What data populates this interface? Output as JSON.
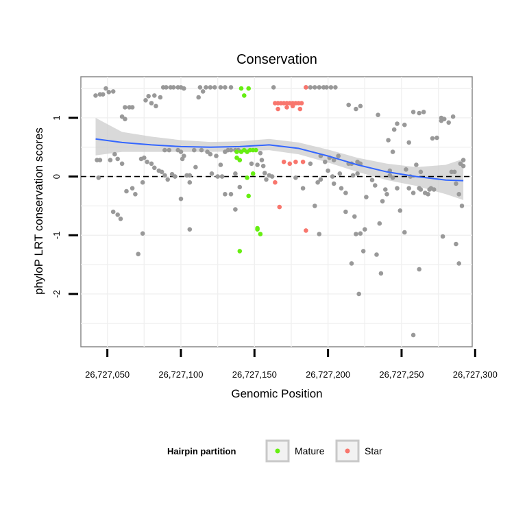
{
  "chart_data": {
    "type": "scatter",
    "title": "Conservation",
    "xlabel": "Genomic Position",
    "ylabel": "phyloP LRT conservation scores",
    "xlim": [
      26727032,
      26727298
    ],
    "ylim": [
      -2.9,
      1.7
    ],
    "x_ticks": [
      {
        "value": 26727050,
        "label": "26,727,050"
      },
      {
        "value": 26727100,
        "label": "26,727,100"
      },
      {
        "value": 26727150,
        "label": "26,727,150"
      },
      {
        "value": 26727200,
        "label": "26,727,200"
      },
      {
        "value": 26727250,
        "label": "26,727,250"
      },
      {
        "value": 26727300,
        "label": "26,727,300"
      }
    ],
    "y_ticks": [
      {
        "value": 1,
        "label": "1"
      },
      {
        "value": 0,
        "label": "0"
      },
      {
        "value": -1,
        "label": "-1"
      },
      {
        "value": -2,
        "label": "-2"
      }
    ],
    "grid": true,
    "reference_line": {
      "y": 0,
      "style": "dashed"
    },
    "legend": {
      "title": "Hairpin partition",
      "placement": "bottom",
      "entries": [
        {
          "name": "Mature",
          "color": "#66ee11"
        },
        {
          "name": "Star",
          "color": "#f8766d"
        }
      ]
    },
    "smooth": {
      "color": "#3366ff",
      "band_color": "#cccccc",
      "x": [
        26727042,
        26727060,
        26727080,
        26727100,
        26727120,
        26727140,
        26727160,
        26727180,
        26727200,
        26727220,
        26727240,
        26727260,
        26727280,
        26727292
      ],
      "y": [
        0.64,
        0.58,
        0.54,
        0.51,
        0.5,
        0.51,
        0.54,
        0.48,
        0.35,
        0.2,
        0.08,
        0.0,
        -0.06,
        -0.07
      ],
      "lower": [
        0.36,
        0.42,
        0.42,
        0.42,
        0.42,
        0.43,
        0.45,
        0.38,
        0.24,
        0.08,
        -0.06,
        -0.16,
        -0.3,
        -0.4
      ],
      "upper": [
        1.0,
        0.76,
        0.68,
        0.62,
        0.59,
        0.6,
        0.64,
        0.58,
        0.46,
        0.32,
        0.22,
        0.16,
        0.2,
        0.3
      ]
    },
    "series": [
      {
        "name": "",
        "color": "#999999",
        "points": [
          [
            26727042,
            1.38
          ],
          [
            26727045,
            1.4
          ],
          [
            26727047,
            1.4
          ],
          [
            26727049,
            1.5
          ],
          [
            26727051,
            1.44
          ],
          [
            26727054,
            1.45
          ],
          [
            26727043,
            0.28
          ],
          [
            26727045,
            0.28
          ],
          [
            26727044,
            -0.02
          ],
          [
            26727052,
            0.28
          ],
          [
            26727055,
            0.38
          ],
          [
            26727057,
            0.3
          ],
          [
            26727060,
            0.22
          ],
          [
            26727062,
            1.18
          ],
          [
            26727065,
            1.18
          ],
          [
            26727067,
            1.18
          ],
          [
            26727060,
            1.02
          ],
          [
            26727062,
            0.98
          ],
          [
            26727054,
            -0.6
          ],
          [
            26727057,
            -0.65
          ],
          [
            26727059,
            -0.72
          ],
          [
            26727063,
            -0.25
          ],
          [
            26727067,
            -0.2
          ],
          [
            26727069,
            -0.3
          ],
          [
            26727071,
            -1.32
          ],
          [
            26727074,
            -0.97
          ],
          [
            26727073,
            0.3
          ],
          [
            26727075,
            0.32
          ],
          [
            26727074,
            -0.1
          ],
          [
            26727077,
            0.25
          ],
          [
            26727076,
            1.3
          ],
          [
            26727078,
            1.37
          ],
          [
            26727082,
            1.38
          ],
          [
            26727080,
            1.25
          ],
          [
            26727083,
            1.2
          ],
          [
            26727086,
            1.35
          ],
          [
            26727088,
            1.52
          ],
          [
            26727090,
            1.52
          ],
          [
            26727093,
            1.52
          ],
          [
            26727095,
            1.52
          ],
          [
            26727098,
            1.52
          ],
          [
            26727100,
            1.52
          ],
          [
            26727102,
            1.5
          ],
          [
            26727080,
            0.22
          ],
          [
            26727082,
            0.15
          ],
          [
            26727085,
            0.1
          ],
          [
            26727087,
            0.08
          ],
          [
            26727089,
            0.02
          ],
          [
            26727091,
            -0.05
          ],
          [
            26727094,
            0.04
          ],
          [
            26727096,
            0.0
          ],
          [
            26727089,
            0.45
          ],
          [
            26727092,
            0.45
          ],
          [
            26727098,
            0.45
          ],
          [
            26727100,
            0.42
          ],
          [
            26727101,
            0.3
          ],
          [
            26727102,
            0.35
          ],
          [
            26727104,
            0.02
          ],
          [
            26727106,
            0.02
          ],
          [
            26727106,
            -0.1
          ],
          [
            26727110,
            0.16
          ],
          [
            26727100,
            -0.38
          ],
          [
            26727106,
            -0.9
          ],
          [
            26727112,
            1.35
          ],
          [
            26727115,
            1.45
          ],
          [
            26727113,
            1.52
          ],
          [
            26727117,
            1.52
          ],
          [
            26727120,
            1.52
          ],
          [
            26727123,
            1.52
          ],
          [
            26727127,
            1.52
          ],
          [
            26727130,
            1.52
          ],
          [
            26727134,
            1.52
          ],
          [
            26727109,
            0.45
          ],
          [
            26727114,
            0.45
          ],
          [
            26727118,
            0.42
          ],
          [
            26727120,
            0.38
          ],
          [
            26727124,
            0.35
          ],
          [
            26727127,
            0.2
          ],
          [
            26727130,
            0.42
          ],
          [
            26727132,
            0.45
          ],
          [
            26727134,
            0.45
          ],
          [
            26727137,
            0.45
          ],
          [
            26727139,
            0.45
          ],
          [
            26727137,
            0.05
          ],
          [
            26727121,
            0.05
          ],
          [
            26727125,
            0.0
          ],
          [
            26727128,
            0.0
          ],
          [
            26727130,
            -0.3
          ],
          [
            26727134,
            -0.3
          ],
          [
            26727137,
            -0.56
          ],
          [
            26727140,
            -0.18
          ],
          [
            26727148,
            0.22
          ],
          [
            26727152,
            0.2
          ],
          [
            26727154,
            0.4
          ],
          [
            26727155,
            0.28
          ],
          [
            26727156,
            0.18
          ],
          [
            26727157,
            0.06
          ],
          [
            26727160,
            0.02
          ],
          [
            26727162,
            0.0
          ],
          [
            26727158,
            -0.05
          ],
          [
            26727163,
            1.52
          ],
          [
            26727185,
            1.52
          ],
          [
            26727188,
            1.52
          ],
          [
            26727191,
            1.52
          ],
          [
            26727194,
            1.52
          ],
          [
            26727197,
            1.52
          ],
          [
            26727199,
            1.52
          ],
          [
            26727202,
            1.52
          ],
          [
            26727205,
            1.52
          ],
          [
            26727178,
            -0.02
          ],
          [
            26727183,
            -0.2
          ],
          [
            26727188,
            0.22
          ],
          [
            26727195,
            0.35
          ],
          [
            26727198,
            0.25
          ],
          [
            26727201,
            0.32
          ],
          [
            26727204,
            0.28
          ],
          [
            26727207,
            0.35
          ],
          [
            26727193,
            -0.1
          ],
          [
            26727195,
            -0.05
          ],
          [
            26727200,
            0.1
          ],
          [
            26727203,
            0.0
          ],
          [
            26727208,
            0.05
          ],
          [
            26727191,
            -0.5
          ],
          [
            26727194,
            -0.98
          ],
          [
            26727204,
            -0.12
          ],
          [
            26727209,
            -0.2
          ],
          [
            26727212,
            -0.6
          ],
          [
            26727214,
            0.22
          ],
          [
            26727216,
            0.22
          ],
          [
            26727220,
            0.25
          ],
          [
            26727222,
            0.22
          ],
          [
            26727214,
            1.22
          ],
          [
            26727219,
            1.15
          ],
          [
            26727222,
            1.2
          ],
          [
            26727217,
            0.02
          ],
          [
            26727220,
            0.05
          ],
          [
            26727212,
            -0.28
          ],
          [
            26727218,
            -0.68
          ],
          [
            26727225,
            -0.9
          ],
          [
            26727216,
            -1.48
          ],
          [
            26727219,
            -0.98
          ],
          [
            26727222,
            -0.97
          ],
          [
            26727221,
            -2.0
          ],
          [
            26727224,
            -1.27
          ],
          [
            26727226,
            -0.35
          ],
          [
            26727230,
            -0.06
          ],
          [
            26727232,
            -0.15
          ],
          [
            26727235,
            -0.8
          ],
          [
            26727237,
            -0.42
          ],
          [
            26727240,
            -0.3
          ],
          [
            26727233,
            -1.33
          ],
          [
            26727236,
            -1.65
          ],
          [
            26727239,
            -0.22
          ],
          [
            26727242,
            0.02
          ],
          [
            26727244,
            -0.02
          ],
          [
            26727247,
            -0.2
          ],
          [
            26727249,
            -0.58
          ],
          [
            26727234,
            1.05
          ],
          [
            26727241,
            0.62
          ],
          [
            26727245,
            0.8
          ],
          [
            26727247,
            0.9
          ],
          [
            26727252,
            0.88
          ],
          [
            26727255,
            0.58
          ],
          [
            26727258,
            1.1
          ],
          [
            26727262,
            1.08
          ],
          [
            26727265,
            1.1
          ],
          [
            26727244,
            0.42
          ],
          [
            26727253,
            0.12
          ],
          [
            26727256,
            0.0
          ],
          [
            26727255,
            -0.2
          ],
          [
            26727258,
            -0.28
          ],
          [
            26727252,
            -0.95
          ],
          [
            26727260,
            0.2
          ],
          [
            26727262,
            -0.2
          ],
          [
            26727263,
            -0.22
          ],
          [
            26727266,
            -0.28
          ],
          [
            26727268,
            -0.3
          ],
          [
            26727270,
            -0.2
          ],
          [
            26727272,
            -0.22
          ],
          [
            26727271,
            0.65
          ],
          [
            26727274,
            0.66
          ],
          [
            26727277,
            1.0
          ],
          [
            26727279,
            0.98
          ],
          [
            26727282,
            0.92
          ],
          [
            26727285,
            1.02
          ],
          [
            26727277,
            0.95
          ],
          [
            26727269,
            -0.22
          ],
          [
            26727284,
            0.08
          ],
          [
            26727286,
            0.08
          ],
          [
            26727287,
            -0.12
          ],
          [
            26727289,
            -0.3
          ],
          [
            26727291,
            -0.5
          ],
          [
            26727290,
            0.22
          ],
          [
            26727292,
            0.28
          ],
          [
            26727292,
            0.18
          ],
          [
            26727262,
            -1.58
          ],
          [
            26727278,
            -1.02
          ],
          [
            26727287,
            -1.15
          ],
          [
            26727289,
            -1.48
          ],
          [
            26727258,
            -2.7
          ],
          [
            26727263,
            0.08
          ],
          [
            26727242,
            0.1
          ]
        ]
      },
      {
        "name": "Mature",
        "color": "#66ee11",
        "points": [
          [
            26727141,
            1.5
          ],
          [
            26727146,
            1.5
          ],
          [
            26727143,
            1.38
          ],
          [
            26727138,
            0.42
          ],
          [
            26727141,
            0.42
          ],
          [
            26727143,
            0.45
          ],
          [
            26727145,
            0.42
          ],
          [
            26727147,
            0.45
          ],
          [
            26727149,
            0.45
          ],
          [
            26727151,
            0.45
          ],
          [
            26727138,
            0.32
          ],
          [
            26727140,
            0.28
          ],
          [
            26727149,
            0.05
          ],
          [
            26727145,
            -0.02
          ],
          [
            26727146,
            -0.33
          ],
          [
            26727152,
            -0.88
          ],
          [
            26727154,
            -0.98
          ],
          [
            26727152,
            -0.9
          ],
          [
            26727140,
            -1.27
          ]
        ]
      },
      {
        "name": "Star",
        "color": "#f8766d",
        "points": [
          [
            26727185,
            1.52
          ],
          [
            26727164,
            1.25
          ],
          [
            26727166,
            1.25
          ],
          [
            26727168,
            1.25
          ],
          [
            26727170,
            1.25
          ],
          [
            26727172,
            1.25
          ],
          [
            26727174,
            1.25
          ],
          [
            26727176,
            1.25
          ],
          [
            26727178,
            1.25
          ],
          [
            26727180,
            1.25
          ],
          [
            26727182,
            1.25
          ],
          [
            26727166,
            1.15
          ],
          [
            26727172,
            1.18
          ],
          [
            26727176,
            1.2
          ],
          [
            26727181,
            1.15
          ],
          [
            26727170,
            0.25
          ],
          [
            26727174,
            0.22
          ],
          [
            26727178,
            0.25
          ],
          [
            26727183,
            0.25
          ],
          [
            26727164,
            -0.1
          ],
          [
            26727167,
            -0.52
          ],
          [
            26727185,
            -0.92
          ]
        ]
      }
    ]
  }
}
